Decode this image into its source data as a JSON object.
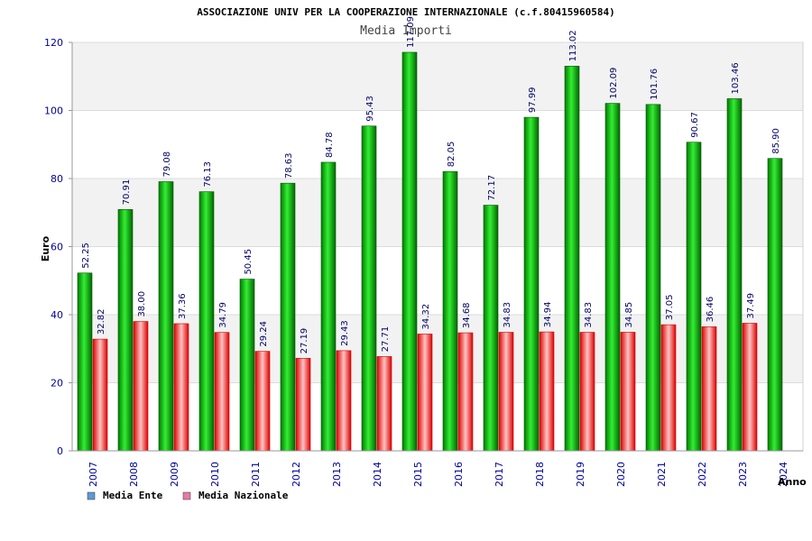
{
  "chart_data": {
    "type": "bar",
    "title": "ASSOCIAZIONE UNIV PER LA COOPERAZIONE INTERNAZIONALE (c.f.80415960584)",
    "subtitle": "Media Importi",
    "xlabel": "Anno",
    "ylabel": "Euro",
    "ylim": [
      0,
      120
    ],
    "yticks": [
      0,
      20,
      40,
      60,
      80,
      100,
      120
    ],
    "categories": [
      "2007",
      "2008",
      "2009",
      "2010",
      "2011",
      "2012",
      "2013",
      "2014",
      "2015",
      "2016",
      "2017",
      "2018",
      "2019",
      "2020",
      "2021",
      "2022",
      "2023",
      "2024"
    ],
    "series": [
      {
        "name": "Media Ente",
        "values": [
          52.25,
          70.91,
          79.08,
          76.13,
          50.45,
          78.63,
          84.78,
          95.43,
          117.09,
          82.05,
          72.17,
          97.99,
          113.02,
          102.09,
          101.76,
          90.67,
          103.46,
          85.9
        ],
        "labels": [
          "52.25",
          "70.91",
          "79.08",
          "76.13",
          "50.45",
          "78.63",
          "84.78",
          "95.43",
          "117.09",
          "82.05",
          "72.17",
          "97.99",
          "113.02",
          "102.09",
          "101.76",
          "90.67",
          "103.46",
          "85.90"
        ]
      },
      {
        "name": "Media Nazionale",
        "values": [
          32.82,
          38.0,
          37.36,
          34.79,
          29.24,
          27.19,
          29.43,
          27.71,
          34.32,
          34.68,
          34.83,
          34.94,
          34.83,
          34.85,
          37.05,
          36.46,
          37.49,
          null
        ],
        "labels": [
          "32.82",
          "38.00",
          "37.36",
          "34.79",
          "29.24",
          "27.19",
          "29.43",
          "27.71",
          "34.32",
          "34.68",
          "34.83",
          "34.94",
          "34.83",
          "34.85",
          "37.05",
          "36.46",
          "37.49",
          null
        ]
      }
    ],
    "legend": {
      "placement": "bottom-left",
      "items": [
        {
          "label": "Media Ente",
          "color": "#5b9bd5"
        },
        {
          "label": "Media Nazionale",
          "color": "#e87aa8"
        }
      ]
    },
    "grid": true,
    "colors": {
      "ente_dark": "#006600",
      "ente_light": "#22dd22",
      "naz_dark": "#dd0000",
      "naz_light": "#ffbbbb",
      "axis_text": "#000099",
      "label_text": "#000066",
      "band": "#f2f2f2"
    }
  }
}
